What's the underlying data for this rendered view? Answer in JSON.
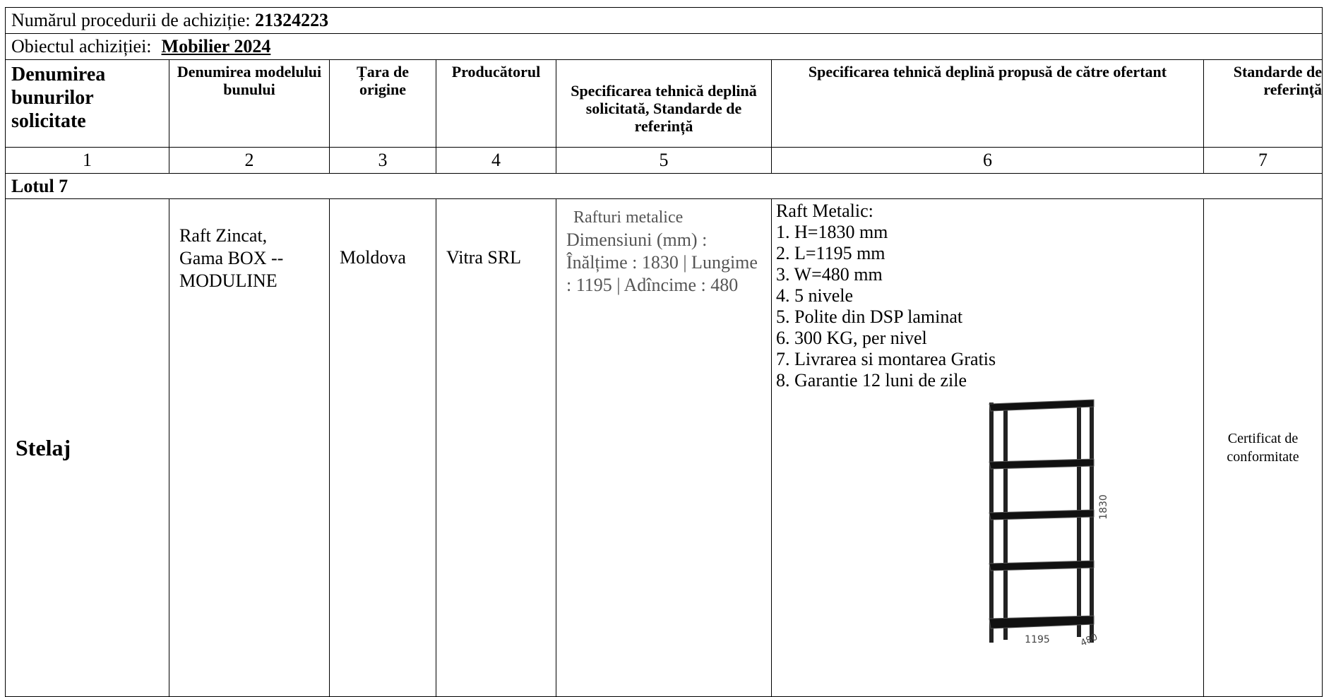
{
  "header": {
    "procedure_label": "Numărul procedurii de achiziție:",
    "procedure_number": "21324223",
    "object_label": "Obiectul achiziției:",
    "object_value": "Mobilier 2024"
  },
  "table": {
    "columns": [
      "Denumirea bunurilor solicitate",
      "Denumirea modelului bunului",
      "Țara de origine",
      "Producătorul",
      "Specificarea tehnică deplină solicitată, Standarde de referință",
      "Specificarea tehnică deplină propusă de către ofertant",
      "Standarde de referinţă"
    ],
    "column_numbers": [
      1,
      2,
      3,
      4,
      5,
      6,
      7
    ],
    "lot": "Lotul 7",
    "rows": [
      {
        "goods": "Stelaj",
        "model": "Raft Zincat, Gama BOX -- MODULINE",
        "origin": "Moldova",
        "producer": "Vitra SRL",
        "requested_spec": [
          "Rafturi metalice",
          "Dimensiuni (mm) : Înălțime : 1830 | Lungime : 1195 | Adîncime : 480"
        ],
        "offered_spec_title": "Raft Metalic:",
        "offered_spec": [
          "1. H=1830 mm",
          "2. L=1195 mm",
          "3. W=480 mm",
          "4. 5 nivele",
          "5. Polite din DSP laminat",
          "6. 300 KG, per nivel",
          "7. Livrarea si montarea Gratis",
          "8. Garantie 12 luni de zile"
        ],
        "image_labels": {
          "height": "1830",
          "length": "1195",
          "depth": "480"
        },
        "standards": "Certificat de conformitate"
      }
    ]
  }
}
